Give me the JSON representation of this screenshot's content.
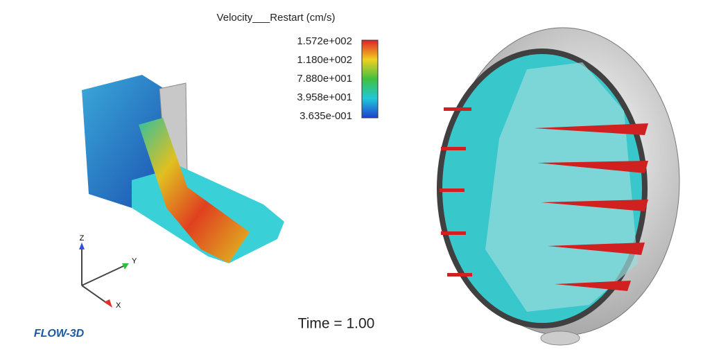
{
  "legend": {
    "title": "Velocity___Restart (cm/s)",
    "labels": [
      "1.572e+002",
      "1.180e+002",
      "7.880e+001",
      "3.958e+001",
      "3.635e-001"
    ]
  },
  "axes": {
    "z": "Z",
    "y": "Y",
    "x": "X"
  },
  "time_label": "Time = 1.00",
  "logo": "FLOW-3D"
}
